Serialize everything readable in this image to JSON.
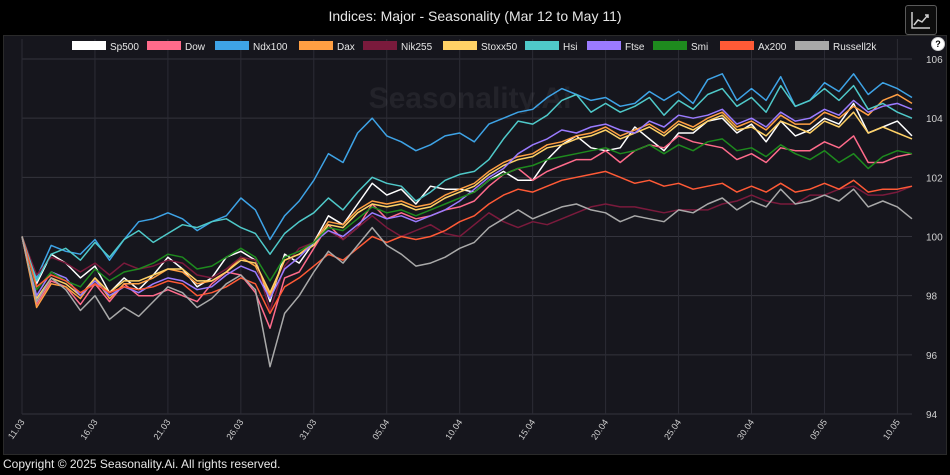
{
  "header": {
    "title": "Indices: Major - Seasonality (Mar 12 to May 11)",
    "expand_icon": "line-chart-expand-icon",
    "help_label": "?"
  },
  "watermark": "Seasonality.Ai",
  "footer": {
    "copyright": "Copyright © 2025 Seasonality.Ai. All rights reserved."
  },
  "chart_data": {
    "type": "line",
    "title": "Indices: Major - Seasonality (Mar 12 to May 11)",
    "xlabel": "",
    "ylabel": "",
    "ylim": [
      94,
      106
    ],
    "y_ticks": [
      94,
      96,
      98,
      100,
      102,
      104,
      106
    ],
    "x_tick_labels": [
      "11.03",
      "16.03",
      "21.03",
      "26.03",
      "31.03",
      "05.04",
      "10.04",
      "15.04",
      "20.04",
      "25.04",
      "30.04",
      "05.05",
      "10.05"
    ],
    "x_ticks_step": 5,
    "num_points": 62,
    "grid": true,
    "legend_position": "top",
    "series": [
      {
        "name": "Sp500",
        "color": "#ffffff",
        "values": [
          100,
          98.4,
          99.4,
          99.1,
          98.6,
          99.0,
          98.1,
          98.6,
          98.2,
          98.7,
          99.3,
          98.9,
          98.3,
          98.6,
          99.3,
          99.5,
          99.2,
          97.8,
          99.4,
          99.1,
          99.8,
          100.7,
          100.4,
          101.1,
          101.8,
          101.4,
          101.6,
          101.1,
          101.7,
          101.6,
          101.6,
          101.5,
          101.9,
          102.2,
          101.9,
          101.9,
          102.6,
          103.1,
          103.4,
          103.0,
          102.9,
          103.0,
          103.7,
          103.3,
          102.9,
          103.5,
          103.5,
          103.9,
          104.0,
          103.5,
          103.8,
          103.2,
          103.9,
          103.4,
          103.6,
          104.0,
          103.8,
          104.5,
          103.5,
          103.7,
          103.9,
          103.4
        ]
      },
      {
        "name": "Dow",
        "color": "#ff6b8b",
        "values": [
          100,
          97.7,
          98.5,
          98.3,
          97.7,
          98.4,
          97.8,
          98.4,
          98.0,
          98.0,
          98.2,
          98.0,
          97.8,
          98.4,
          98.8,
          98.7,
          98.1,
          96.9,
          98.6,
          98.8,
          99.6,
          100.4,
          99.9,
          100.3,
          101.1,
          100.6,
          100.8,
          100.6,
          100.7,
          100.9,
          101.0,
          101.2,
          101.7,
          102.1,
          102.3,
          101.9,
          102.2,
          102.4,
          102.6,
          102.6,
          102.9,
          102.5,
          102.9,
          103.1,
          103.0,
          103.4,
          103.2,
          103.1,
          103.0,
          102.6,
          102.8,
          102.5,
          103.0,
          102.9,
          102.9,
          103.2,
          103.0,
          103.4,
          102.5,
          102.5,
          102.7,
          102.8
        ]
      },
      {
        "name": "Ndx100",
        "color": "#3ea3e6",
        "values": [
          100,
          98.6,
          99.7,
          99.5,
          99.4,
          99.9,
          99.2,
          99.9,
          100.5,
          100.6,
          100.8,
          100.6,
          100.2,
          100.5,
          100.7,
          101.3,
          100.9,
          99.9,
          100.7,
          101.2,
          101.9,
          102.8,
          102.5,
          103.5,
          104.0,
          103.4,
          103.2,
          102.9,
          103.1,
          103.4,
          103.5,
          103.2,
          103.8,
          104.0,
          104.2,
          104.3,
          104.7,
          105.0,
          104.8,
          104.6,
          104.7,
          104.4,
          104.5,
          104.9,
          104.6,
          104.9,
          104.5,
          105.3,
          105.5,
          104.6,
          105.0,
          104.6,
          105.4,
          104.4,
          104.6,
          105.2,
          104.9,
          105.5,
          104.8,
          105.2,
          105.0,
          104.7
        ]
      },
      {
        "name": "Dax",
        "color": "#ff9f43",
        "values": [
          100,
          97.6,
          98.4,
          98.3,
          97.9,
          98.6,
          97.9,
          98.4,
          98.4,
          98.6,
          98.9,
          98.8,
          98.4,
          98.5,
          98.8,
          99.3,
          99.0,
          98.0,
          99.2,
          99.4,
          99.8,
          100.5,
          100.4,
          100.9,
          101.2,
          101.1,
          101.2,
          101.0,
          101.1,
          101.4,
          101.6,
          101.8,
          102.2,
          102.5,
          102.7,
          102.8,
          103.1,
          103.2,
          103.4,
          103.5,
          103.7,
          103.4,
          103.6,
          103.8,
          103.5,
          103.9,
          103.7,
          104.0,
          104.2,
          103.7,
          103.9,
          103.6,
          104.1,
          103.8,
          103.8,
          104.2,
          104.0,
          104.4,
          104.1,
          104.6,
          104.8,
          104.5
        ]
      },
      {
        "name": "Nik255",
        "color": "#7a1a3c",
        "values": [
          100,
          98.7,
          99.3,
          99.1,
          98.8,
          99.1,
          98.7,
          99.1,
          98.9,
          99.0,
          99.2,
          99.1,
          98.7,
          98.6,
          98.9,
          99.3,
          99.2,
          97.5,
          99.0,
          99.6,
          99.8,
          100.2,
          99.9,
          100.3,
          100.7,
          100.3,
          100.0,
          100.2,
          100.4,
          100.1,
          100.0,
          100.4,
          100.8,
          100.5,
          100.3,
          100.5,
          100.4,
          100.6,
          100.8,
          101.0,
          101.1,
          101.0,
          101.0,
          100.9,
          100.8,
          100.9,
          100.9,
          100.9,
          101.1,
          101.2,
          101.4,
          101.2,
          101.1,
          101.1,
          101.4,
          101.4,
          101.6,
          101.7,
          101.4,
          101.4,
          101.5,
          101.7
        ]
      },
      {
        "name": "Stoxx50",
        "color": "#ffd166",
        "values": [
          100,
          97.9,
          98.6,
          98.4,
          98.0,
          98.6,
          98.1,
          98.5,
          98.5,
          98.7,
          98.9,
          98.9,
          98.5,
          98.5,
          98.8,
          99.2,
          99.1,
          98.1,
          99.2,
          99.4,
          99.7,
          100.4,
          100.3,
          100.8,
          101.1,
          101.0,
          101.1,
          100.9,
          101.0,
          101.3,
          101.5,
          101.7,
          102.1,
          102.4,
          102.6,
          102.7,
          103.0,
          103.1,
          103.3,
          103.4,
          103.6,
          103.3,
          103.5,
          103.7,
          103.4,
          103.8,
          103.6,
          103.9,
          104.1,
          103.6,
          103.7,
          103.4,
          103.9,
          103.7,
          103.5,
          103.9,
          103.7,
          104.2,
          103.5,
          103.7,
          103.5,
          103.3
        ]
      },
      {
        "name": "Hsi",
        "color": "#4fc9c9",
        "values": [
          100,
          98.5,
          99.4,
          99.6,
          99.2,
          99.8,
          99.3,
          99.9,
          100.2,
          99.8,
          100.1,
          100.4,
          100.3,
          100.5,
          100.6,
          100.3,
          100.1,
          99.4,
          100.1,
          100.5,
          100.8,
          101.3,
          100.9,
          101.5,
          102.0,
          101.8,
          101.7,
          101.2,
          101.5,
          101.9,
          102.1,
          102.2,
          102.6,
          103.3,
          103.9,
          103.8,
          104.1,
          104.6,
          104.8,
          104.2,
          104.5,
          104.2,
          104.4,
          104.7,
          104.1,
          104.6,
          104.3,
          104.8,
          105.0,
          104.4,
          104.7,
          104.2,
          105.1,
          104.4,
          104.6,
          105.0,
          104.6,
          105.1,
          104.3,
          104.5,
          104.2,
          104.0
        ]
      },
      {
        "name": "Ftse",
        "color": "#9b7bff",
        "values": [
          100,
          98.0,
          98.8,
          98.6,
          98.0,
          98.5,
          98.0,
          98.3,
          98.1,
          98.4,
          98.6,
          98.5,
          98.2,
          98.3,
          98.7,
          99.0,
          98.8,
          97.9,
          98.9,
          99.3,
          99.8,
          100.2,
          100.0,
          100.4,
          100.8,
          100.6,
          100.7,
          100.5,
          100.7,
          100.9,
          101.2,
          101.6,
          102.0,
          102.3,
          102.8,
          103.1,
          103.3,
          103.6,
          103.5,
          103.7,
          103.8,
          103.6,
          103.5,
          103.9,
          103.7,
          104.1,
          104.0,
          104.1,
          104.3,
          103.8,
          104.0,
          103.7,
          104.2,
          103.9,
          104.0,
          104.3,
          104.1,
          104.6,
          104.2,
          104.4,
          104.5,
          104.3
        ]
      },
      {
        "name": "Smi",
        "color": "#1e8a1e",
        "values": [
          100,
          98.2,
          98.8,
          98.5,
          98.3,
          98.9,
          98.5,
          98.8,
          98.9,
          99.1,
          99.4,
          99.3,
          98.9,
          99.0,
          99.3,
          99.6,
          99.3,
          98.5,
          99.3,
          99.5,
          99.8,
          100.3,
          100.2,
          100.6,
          101.0,
          100.8,
          100.9,
          100.7,
          100.9,
          101.1,
          101.3,
          101.5,
          101.9,
          102.1,
          102.3,
          102.4,
          102.6,
          102.7,
          102.8,
          102.9,
          103.0,
          102.8,
          102.9,
          103.1,
          102.8,
          103.1,
          102.9,
          103.2,
          103.3,
          102.9,
          103.0,
          102.7,
          103.1,
          102.8,
          102.6,
          102.9,
          102.5,
          102.8,
          102.3,
          102.7,
          102.9,
          102.8
        ]
      },
      {
        "name": "Ax200",
        "color": "#ff5a36",
        "values": [
          100,
          98.3,
          98.7,
          98.5,
          98.1,
          98.4,
          98.1,
          98.3,
          98.2,
          98.3,
          98.5,
          98.4,
          98.0,
          98.1,
          98.3,
          98.6,
          98.4,
          97.4,
          98.3,
          98.6,
          99.0,
          99.4,
          99.2,
          99.6,
          100.0,
          99.8,
          100.0,
          99.9,
          100.0,
          100.2,
          100.5,
          100.7,
          101.1,
          101.4,
          101.6,
          101.5,
          101.7,
          101.9,
          102.0,
          102.1,
          102.2,
          102.0,
          101.8,
          101.9,
          101.7,
          101.8,
          101.6,
          101.7,
          101.8,
          101.5,
          101.7,
          101.5,
          101.8,
          101.5,
          101.6,
          101.8,
          101.6,
          101.9,
          101.5,
          101.6,
          101.6,
          101.7
        ]
      },
      {
        "name": "Russell2k",
        "color": "#a9a9a9",
        "values": [
          100,
          97.8,
          98.6,
          98.2,
          97.5,
          98.0,
          97.2,
          97.6,
          97.3,
          97.8,
          98.3,
          98.1,
          97.6,
          97.9,
          98.4,
          98.7,
          98.2,
          95.6,
          97.4,
          98.0,
          98.8,
          99.5,
          99.1,
          99.7,
          100.3,
          99.7,
          99.4,
          99.0,
          99.1,
          99.3,
          99.6,
          99.8,
          100.3,
          100.6,
          100.9,
          100.6,
          100.8,
          101.0,
          101.1,
          100.9,
          100.8,
          100.5,
          100.7,
          100.6,
          100.5,
          100.9,
          100.8,
          101.1,
          101.3,
          100.9,
          101.2,
          101.0,
          101.6,
          101.1,
          101.2,
          101.4,
          101.2,
          101.6,
          101.0,
          101.2,
          101.0,
          100.6
        ]
      }
    ]
  }
}
